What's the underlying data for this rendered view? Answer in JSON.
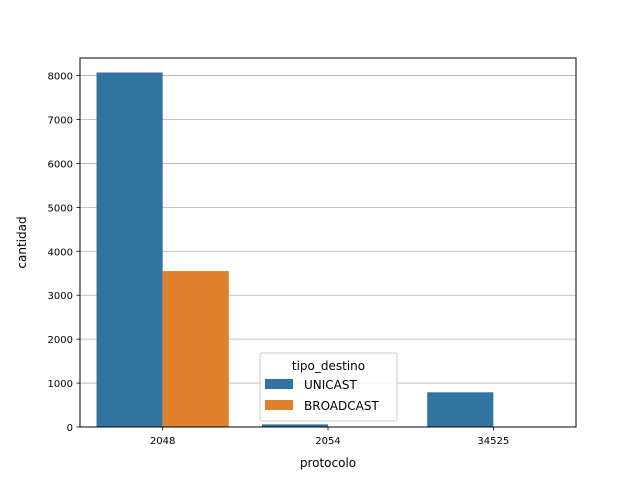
{
  "chart_data": {
    "type": "bar",
    "title": "",
    "xlabel": "protocolo",
    "ylabel": "cantidad",
    "categories": [
      "2048",
      "2054",
      "34525"
    ],
    "series": [
      {
        "name": "UNICAST",
        "values": [
          8070,
          60,
          790
        ]
      },
      {
        "name": "BROADCAST",
        "values": [
          3550,
          0,
          0
        ]
      }
    ],
    "ylim": [
      0,
      8400
    ],
    "yticks": [
      0,
      1000,
      2000,
      3000,
      4000,
      5000,
      6000,
      7000,
      8000
    ],
    "grid": "y",
    "legend": {
      "title": "tipo_destino",
      "placement": "lower-center"
    },
    "colors": {
      "UNICAST": "#3274a1",
      "BROADCAST": "#e1812c"
    }
  }
}
